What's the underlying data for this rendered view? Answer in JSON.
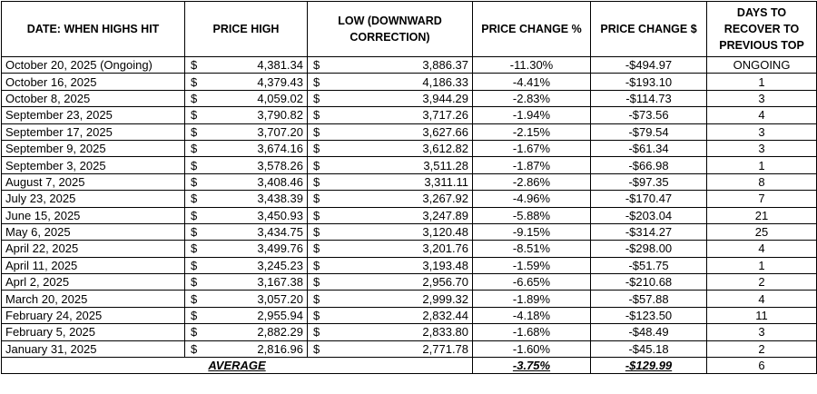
{
  "table": {
    "headers": [
      "DATE: WHEN HIGHS HIT",
      "PRICE HIGH",
      "LOW (DOWNWARD CORRECTION)",
      "PRICE CHANGE %",
      "PRICE CHANGE $",
      "DAYS TO RECOVER TO PREVIOUS TOP"
    ],
    "rows": [
      [
        "October 20, 2025 (Ongoing)",
        "$",
        "4,381.34",
        "$",
        "3,886.37",
        "-11.30%",
        "-$494.97",
        "ONGOING"
      ],
      [
        "October 16, 2025",
        "$",
        "4,379.43",
        "$",
        "4,186.33",
        "-4.41%",
        "-$193.10",
        "1"
      ],
      [
        "October 8, 2025",
        "$",
        "4,059.02",
        "$",
        "3,944.29",
        "-2.83%",
        "-$114.73",
        "3"
      ],
      [
        "September 23, 2025",
        "$",
        "3,790.82",
        "$",
        "3,717.26",
        "-1.94%",
        "-$73.56",
        "4"
      ],
      [
        "September 17, 2025",
        "$",
        "3,707.20",
        "$",
        "3,627.66",
        "-2.15%",
        "-$79.54",
        "3"
      ],
      [
        "September 9, 2025",
        "$",
        "3,674.16",
        "$",
        "3,612.82",
        "-1.67%",
        "-$61.34",
        "3"
      ],
      [
        "September 3, 2025",
        "$",
        "3,578.26",
        "$",
        "3,511.28",
        "-1.87%",
        "-$66.98",
        "1"
      ],
      [
        "August 7, 2025",
        "$",
        "3,408.46",
        "$",
        "3,311.11",
        "-2.86%",
        "-$97.35",
        "8"
      ],
      [
        "July 23, 2025",
        "$",
        "3,438.39",
        "$",
        "3,267.92",
        "-4.96%",
        "-$170.47",
        "7"
      ],
      [
        "June 15, 2025",
        "$",
        "3,450.93",
        "$",
        "3,247.89",
        "-5.88%",
        "-$203.04",
        "21"
      ],
      [
        "May 6, 2025",
        "$",
        "3,434.75",
        "$",
        "3,120.48",
        "-9.15%",
        "-$314.27",
        "25"
      ],
      [
        "April 22, 2025",
        "$",
        "3,499.76",
        "$",
        "3,201.76",
        "-8.51%",
        "-$298.00",
        "4"
      ],
      [
        "April 11, 2025",
        "$",
        "3,245.23",
        "$",
        "3,193.48",
        "-1.59%",
        "-$51.75",
        "1"
      ],
      [
        "Aprl 2, 2025",
        "$",
        "3,167.38",
        "$",
        "2,956.70",
        "-6.65%",
        "-$210.68",
        "2"
      ],
      [
        "March 20, 2025",
        "$",
        "3,057.20",
        "$",
        "2,999.32",
        "-1.89%",
        "-$57.88",
        "4"
      ],
      [
        "February 24, 2025",
        "$",
        "2,955.94",
        "$",
        "2,832.44",
        "-4.18%",
        "-$123.50",
        "11"
      ],
      [
        "February 5, 2025",
        "$",
        "2,882.29",
        "$",
        "2,833.80",
        "-1.68%",
        "-$48.49",
        "3"
      ],
      [
        "January 31, 2025",
        "$",
        "2,816.96",
        "$",
        "2,771.78",
        "-1.60%",
        "-$45.18",
        "2"
      ]
    ],
    "average": [
      "AVERAGE",
      "-3.75%",
      "-$129.99",
      "6"
    ]
  }
}
